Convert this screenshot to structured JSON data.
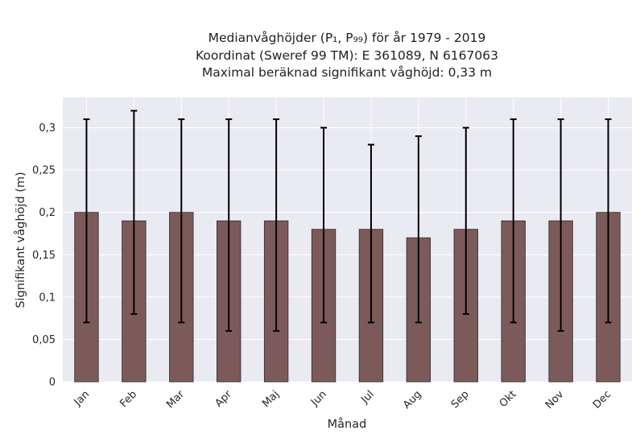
{
  "chart_data": {
    "type": "bar",
    "title_lines": [
      "Medianvåghöjder (P₁, P₉₉) för år 1979 - 2019",
      "Koordinat (Sweref 99 TM): E 361089, N 6167063",
      "Maximal beräknad signifikant våghöjd: 0,33 m"
    ],
    "xlabel": "Månad",
    "ylabel": "Signifikant våghöjd (m)",
    "categories": [
      "Jan",
      "Feb",
      "Mar",
      "Apr",
      "Maj",
      "Jun",
      "Jul",
      "Aug",
      "Sep",
      "Okt",
      "Nov",
      "Dec"
    ],
    "values": [
      0.2,
      0.19,
      0.2,
      0.19,
      0.19,
      0.18,
      0.18,
      0.17,
      0.18,
      0.19,
      0.19,
      0.2
    ],
    "lower": [
      0.07,
      0.08,
      0.07,
      0.06,
      0.06,
      0.07,
      0.07,
      0.07,
      0.08,
      0.07,
      0.06,
      0.07
    ],
    "upper": [
      0.31,
      0.32,
      0.31,
      0.31,
      0.31,
      0.3,
      0.28,
      0.29,
      0.3,
      0.31,
      0.31,
      0.31
    ],
    "ylim": [
      0,
      0.3357
    ],
    "yticks": [
      0,
      0.05,
      0.1,
      0.15,
      0.2,
      0.25,
      0.3
    ],
    "ytick_labels": [
      "0",
      "0,05",
      "0,1",
      "0,15",
      "0,2",
      "0,25",
      "0,3"
    ],
    "grid": true,
    "bar_color": "#7d5a5a",
    "plot_background": "#eaeaf2"
  }
}
